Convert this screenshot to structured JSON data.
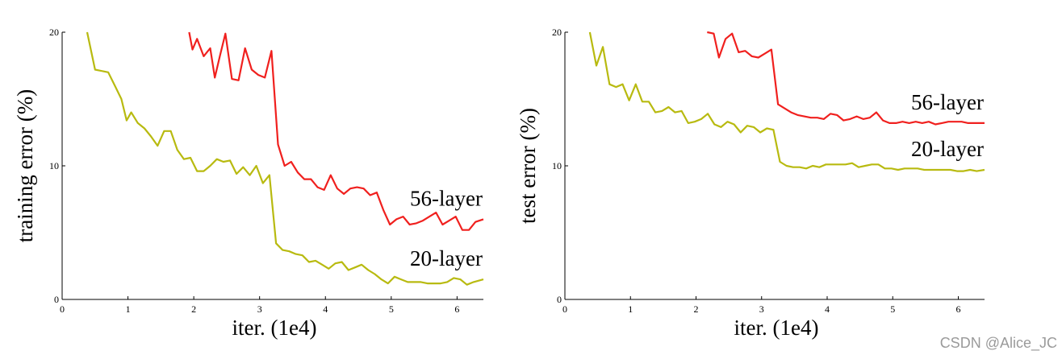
{
  "chart_data": [
    {
      "type": "line",
      "xlabel": "iter. (1e4)",
      "ylabel": "training error (%)",
      "xlim": [
        0,
        6.4
      ],
      "ylim": [
        0,
        20
      ],
      "xticks": [
        0,
        1,
        2,
        3,
        4,
        5,
        6
      ],
      "yticks": [
        0,
        10,
        20
      ],
      "series": [
        {
          "name": "56-layer",
          "color": "#f0201e",
          "x": [
            1.93,
            1.98,
            2.05,
            2.15,
            2.25,
            2.32,
            2.4,
            2.48,
            2.58,
            2.68,
            2.78,
            2.88,
            2.98,
            3.08,
            3.18,
            3.28,
            3.38,
            3.48,
            3.58,
            3.68,
            3.78,
            3.88,
            3.98,
            4.08,
            4.18,
            4.28,
            4.38,
            4.48,
            4.58,
            4.68,
            4.78,
            4.88,
            4.98,
            5.08,
            5.18,
            5.28,
            5.38,
            5.48,
            5.58,
            5.68,
            5.78,
            5.88,
            5.98,
            6.08,
            6.18,
            6.28,
            6.4
          ],
          "values": [
            20,
            18.7,
            19.5,
            18.2,
            18.8,
            16.6,
            18.3,
            19.9,
            16.5,
            16.4,
            18.8,
            17.2,
            16.8,
            16.6,
            18.6,
            11.6,
            10.0,
            10.3,
            9.5,
            9.0,
            9.0,
            8.4,
            8.2,
            9.3,
            8.3,
            7.9,
            8.3,
            8.4,
            8.3,
            7.8,
            8.0,
            6.7,
            5.6,
            6.0,
            6.2,
            5.6,
            5.7,
            5.9,
            6.2,
            6.5,
            5.6,
            5.9,
            6.2,
            5.2,
            5.2,
            5.8,
            6.0
          ]
        },
        {
          "name": "20-layer",
          "color": "#b8ba10",
          "x": [
            0.38,
            0.5,
            0.7,
            0.8,
            0.9,
            0.98,
            1.05,
            1.15,
            1.25,
            1.35,
            1.45,
            1.55,
            1.65,
            1.75,
            1.85,
            1.95,
            2.05,
            2.15,
            2.25,
            2.35,
            2.45,
            2.55,
            2.65,
            2.75,
            2.85,
            2.95,
            3.05,
            3.15,
            3.25,
            3.35,
            3.45,
            3.55,
            3.65,
            3.75,
            3.85,
            3.95,
            4.05,
            4.15,
            4.25,
            4.35,
            4.45,
            4.55,
            4.65,
            4.75,
            4.85,
            4.95,
            5.05,
            5.15,
            5.25,
            5.35,
            5.45,
            5.55,
            5.65,
            5.75,
            5.85,
            5.95,
            6.05,
            6.15,
            6.25,
            6.4
          ],
          "values": [
            20,
            17.2,
            17.0,
            16.0,
            15.0,
            13.4,
            14.0,
            13.2,
            12.8,
            12.2,
            11.5,
            12.6,
            12.6,
            11.2,
            10.5,
            10.6,
            9.6,
            9.6,
            10.0,
            10.5,
            10.3,
            10.4,
            9.4,
            9.9,
            9.3,
            10.0,
            8.7,
            9.3,
            4.2,
            3.7,
            3.6,
            3.4,
            3.3,
            2.8,
            2.9,
            2.6,
            2.3,
            2.7,
            2.8,
            2.2,
            2.4,
            2.6,
            2.2,
            1.9,
            1.5,
            1.2,
            1.7,
            1.5,
            1.3,
            1.3,
            1.3,
            1.2,
            1.2,
            1.2,
            1.3,
            1.6,
            1.5,
            1.1,
            1.3,
            1.5
          ]
        }
      ]
    },
    {
      "type": "line",
      "xlabel": "iter. (1e4)",
      "ylabel": "test error (%)",
      "xlim": [
        0,
        6.4
      ],
      "ylim": [
        0,
        20
      ],
      "xticks": [
        0,
        1,
        2,
        3,
        4,
        5,
        6
      ],
      "yticks": [
        0,
        10,
        20
      ],
      "series": [
        {
          "name": "56-layer",
          "color": "#f0201e",
          "x": [
            2.17,
            2.27,
            2.35,
            2.45,
            2.55,
            2.65,
            2.75,
            2.85,
            2.95,
            3.05,
            3.15,
            3.25,
            3.35,
            3.45,
            3.55,
            3.65,
            3.75,
            3.85,
            3.95,
            4.05,
            4.15,
            4.25,
            4.35,
            4.45,
            4.55,
            4.65,
            4.75,
            4.85,
            4.95,
            5.05,
            5.15,
            5.25,
            5.35,
            5.45,
            5.55,
            5.65,
            5.75,
            5.85,
            5.95,
            6.05,
            6.15,
            6.25,
            6.4
          ],
          "values": [
            20,
            19.9,
            18.1,
            19.5,
            19.9,
            18.5,
            18.6,
            18.2,
            18.1,
            18.4,
            18.7,
            14.6,
            14.3,
            14.0,
            13.8,
            13.7,
            13.6,
            13.6,
            13.5,
            13.9,
            13.8,
            13.4,
            13.5,
            13.7,
            13.5,
            13.6,
            14.0,
            13.4,
            13.2,
            13.2,
            13.3,
            13.2,
            13.3,
            13.2,
            13.3,
            13.1,
            13.2,
            13.3,
            13.3,
            13.3,
            13.2,
            13.2,
            13.2
          ]
        },
        {
          "name": "20-layer",
          "color": "#b8ba10",
          "x": [
            0.38,
            0.48,
            0.58,
            0.68,
            0.78,
            0.88,
            0.98,
            1.08,
            1.18,
            1.28,
            1.38,
            1.48,
            1.58,
            1.68,
            1.78,
            1.88,
            1.98,
            2.08,
            2.18,
            2.28,
            2.38,
            2.48,
            2.58,
            2.68,
            2.78,
            2.88,
            2.98,
            3.08,
            3.18,
            3.28,
            3.38,
            3.48,
            3.58,
            3.68,
            3.78,
            3.88,
            3.98,
            4.08,
            4.18,
            4.28,
            4.38,
            4.48,
            4.58,
            4.68,
            4.78,
            4.88,
            4.98,
            5.08,
            5.18,
            5.28,
            5.38,
            5.48,
            5.58,
            5.68,
            5.78,
            5.88,
            5.98,
            6.08,
            6.18,
            6.28,
            6.4
          ],
          "values": [
            20,
            17.5,
            18.9,
            16.1,
            15.9,
            16.1,
            14.9,
            16.1,
            14.8,
            14.8,
            14.0,
            14.1,
            14.4,
            14.0,
            14.1,
            13.2,
            13.3,
            13.5,
            13.9,
            13.1,
            12.9,
            13.3,
            13.1,
            12.5,
            13.0,
            12.9,
            12.5,
            12.8,
            12.7,
            10.3,
            10.0,
            9.9,
            9.9,
            9.8,
            10.0,
            9.9,
            10.1,
            10.1,
            10.1,
            10.1,
            10.2,
            9.9,
            10.0,
            10.1,
            10.1,
            9.8,
            9.8,
            9.7,
            9.8,
            9.8,
            9.8,
            9.7,
            9.7,
            9.7,
            9.7,
            9.7,
            9.6,
            9.6,
            9.7,
            9.6,
            9.7
          ]
        }
      ]
    }
  ],
  "watermark": "CSDN @Alice_JC"
}
